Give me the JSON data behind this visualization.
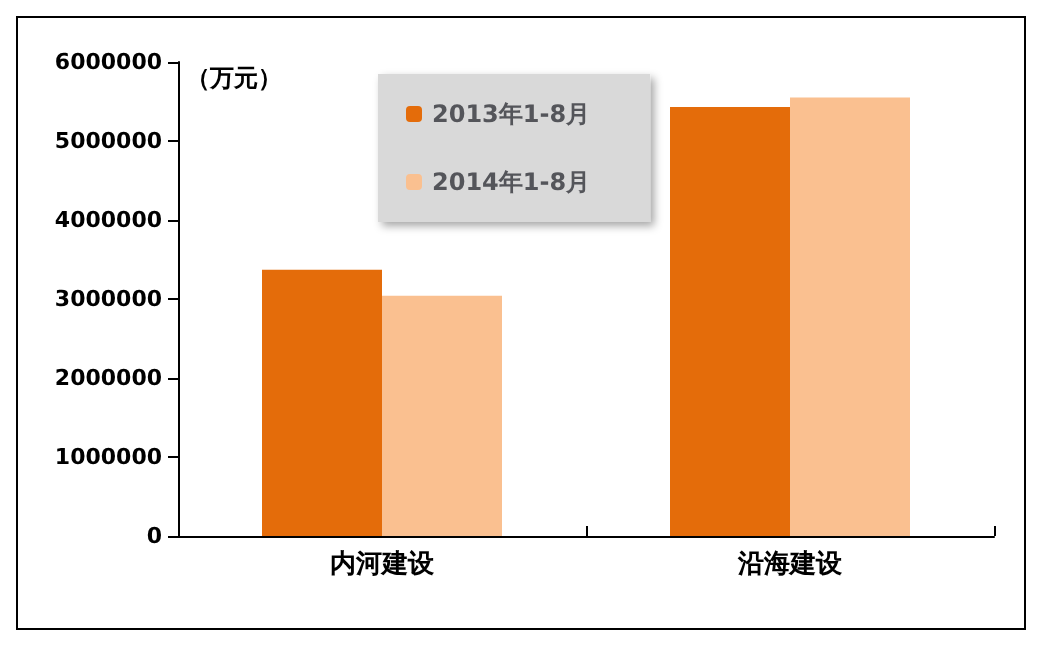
{
  "chart_data": {
    "type": "bar",
    "ylabel": "（万元）",
    "categories": [
      "内河建设",
      "沿海建设"
    ],
    "series": [
      {
        "name": "2013年1-8月",
        "color": "#e46c0a",
        "values": [
          3370000,
          5430000
        ]
      },
      {
        "name": "2014年1-8月",
        "color": "#fac090",
        "values": [
          3040000,
          5550000
        ]
      }
    ],
    "ylim": [
      0,
      6000000
    ],
    "yticks": [
      0,
      1000000,
      2000000,
      3000000,
      4000000,
      5000000,
      6000000
    ],
    "grid": false,
    "legend": "top left"
  }
}
